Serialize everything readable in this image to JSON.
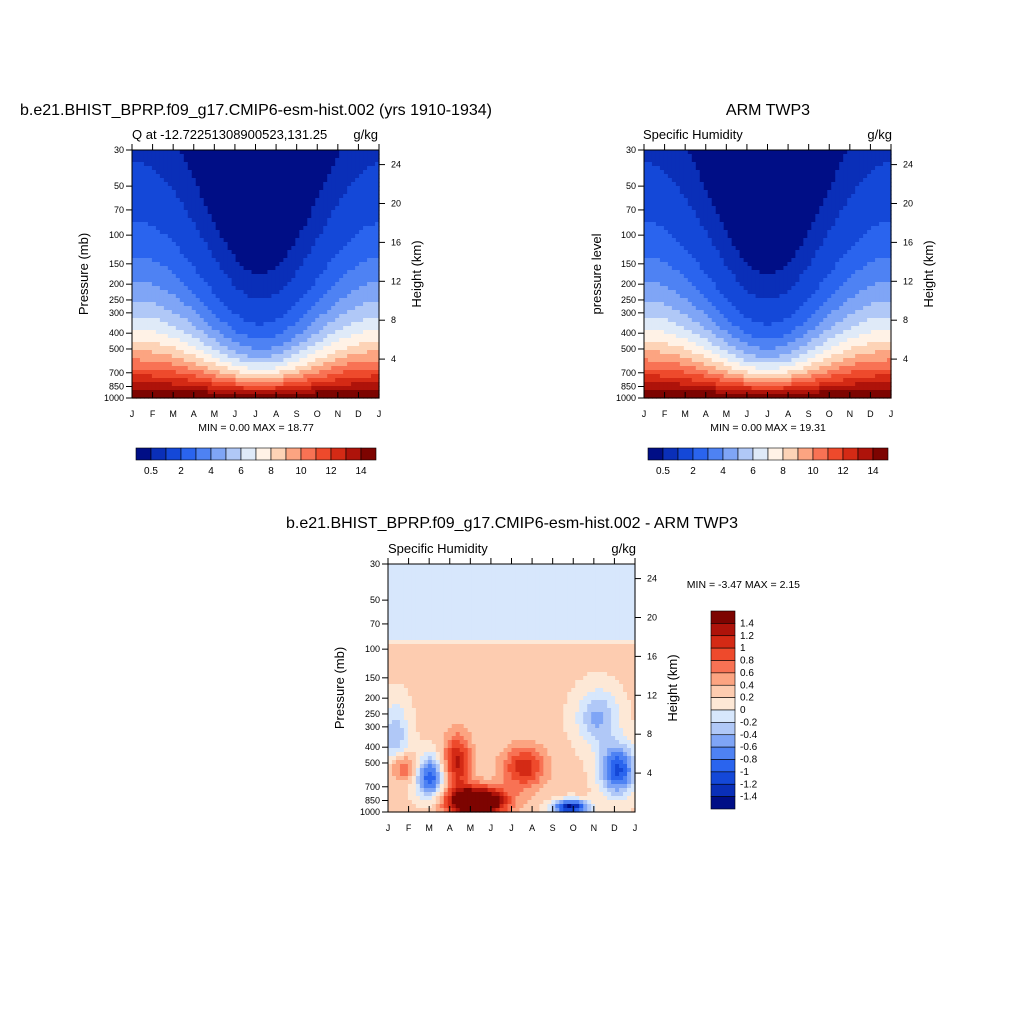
{
  "colors": {
    "model_obs_scale": [
      "#000e86",
      "#0a2fb8",
      "#1448d8",
      "#2a64ee",
      "#4e82f3",
      "#7fa5f6",
      "#b0c8f7",
      "#dfeaf8",
      "#fff2e6",
      "#fdd3b6",
      "#fca481",
      "#f87254",
      "#ee4a2c",
      "#d42a15",
      "#ae130a",
      "#7d0401"
    ],
    "diff_scale": [
      "#000e86",
      "#0a2fb8",
      "#1448d8",
      "#2a64ee",
      "#4e82f3",
      "#7fa5f6",
      "#b0c8f7",
      "#d7e7fc",
      "#fde8d6",
      "#fdccb0",
      "#fca481",
      "#f87254",
      "#ee4a2c",
      "#d42a15",
      "#ae130a",
      "#7d0401"
    ]
  },
  "panel_a": {
    "title": "b.e21.BHIST_BPRP.f09_g17.CMIP6-esm-hist.002 (yrs 1910-1934)",
    "left_string": "Q at -12.72251308900523,131.25",
    "right_string": "g/kg",
    "ylabel": "Pressure (mb)",
    "y2label": "Height (km)",
    "stats": "MIN =   0.00 MAX =  18.77"
  },
  "panel_b": {
    "title": "ARM TWP3",
    "left_string": "Specific Humidity",
    "right_string": "g/kg",
    "ylabel": "pressure level",
    "y2label": "Height (km)",
    "stats": "MIN =   0.00 MAX =  19.31"
  },
  "panel_c": {
    "title": "b.e21.BHIST_BPRP.f09_g17.CMIP6-esm-hist.002 - ARM TWP3",
    "left_string": "Specific Humidity",
    "right_string": "g/kg",
    "ylabel": "Pressure (mb)",
    "y2label": "Height (km)",
    "stats": "MIN =  -3.47 MAX =   2.15"
  },
  "chart_data": [
    {
      "type": "heatmap",
      "panel": "panel_a",
      "x_ticks": [
        "J",
        "F",
        "M",
        "A",
        "M",
        "J",
        "J",
        "A",
        "S",
        "O",
        "N",
        "D",
        "J"
      ],
      "y_ticks": [
        30,
        50,
        70,
        100,
        150,
        200,
        250,
        300,
        400,
        500,
        700,
        850,
        1000
      ],
      "y_range": [
        30,
        1000
      ],
      "y2_ticks": [
        4,
        8,
        12,
        16,
        20,
        24
      ],
      "y2_range": [
        0,
        25.5
      ],
      "colorbar_labels": [
        "0.5",
        "2",
        "4",
        "6",
        "8",
        "10",
        "12",
        "14"
      ],
      "min": 0.0,
      "max": 18.77
    },
    {
      "type": "heatmap",
      "panel": "panel_b",
      "x_ticks": [
        "J",
        "F",
        "M",
        "A",
        "M",
        "J",
        "J",
        "A",
        "S",
        "O",
        "N",
        "D",
        "J"
      ],
      "y_ticks": [
        30,
        50,
        70,
        100,
        150,
        200,
        250,
        300,
        400,
        500,
        700,
        850,
        1000
      ],
      "y_range": [
        30,
        1000
      ],
      "y2_ticks": [
        4,
        8,
        12,
        16,
        20,
        24
      ],
      "y2_range": [
        0,
        25.5
      ],
      "colorbar_labels": [
        "0.5",
        "2",
        "4",
        "6",
        "8",
        "10",
        "12",
        "14"
      ],
      "min": 0.0,
      "max": 19.31
    },
    {
      "type": "heatmap",
      "panel": "panel_c",
      "x_ticks": [
        "J",
        "F",
        "M",
        "A",
        "M",
        "J",
        "J",
        "A",
        "S",
        "O",
        "N",
        "D",
        "J"
      ],
      "y_ticks": [
        30,
        50,
        70,
        100,
        150,
        200,
        250,
        300,
        400,
        500,
        700,
        850,
        1000
      ],
      "y_range": [
        30,
        1000
      ],
      "y2_ticks": [
        4,
        8,
        12,
        16,
        20,
        24
      ],
      "y2_range": [
        0,
        25.5
      ],
      "colorbar_labels": [
        "1.4",
        "1.2",
        "1",
        "0.8",
        "0.6",
        "0.4",
        "0.2",
        "0",
        "-0.2",
        "-0.4",
        "-0.6",
        "-0.8",
        "-1",
        "-1.2",
        "-1.4"
      ],
      "min": -3.47,
      "max": 2.15
    }
  ]
}
